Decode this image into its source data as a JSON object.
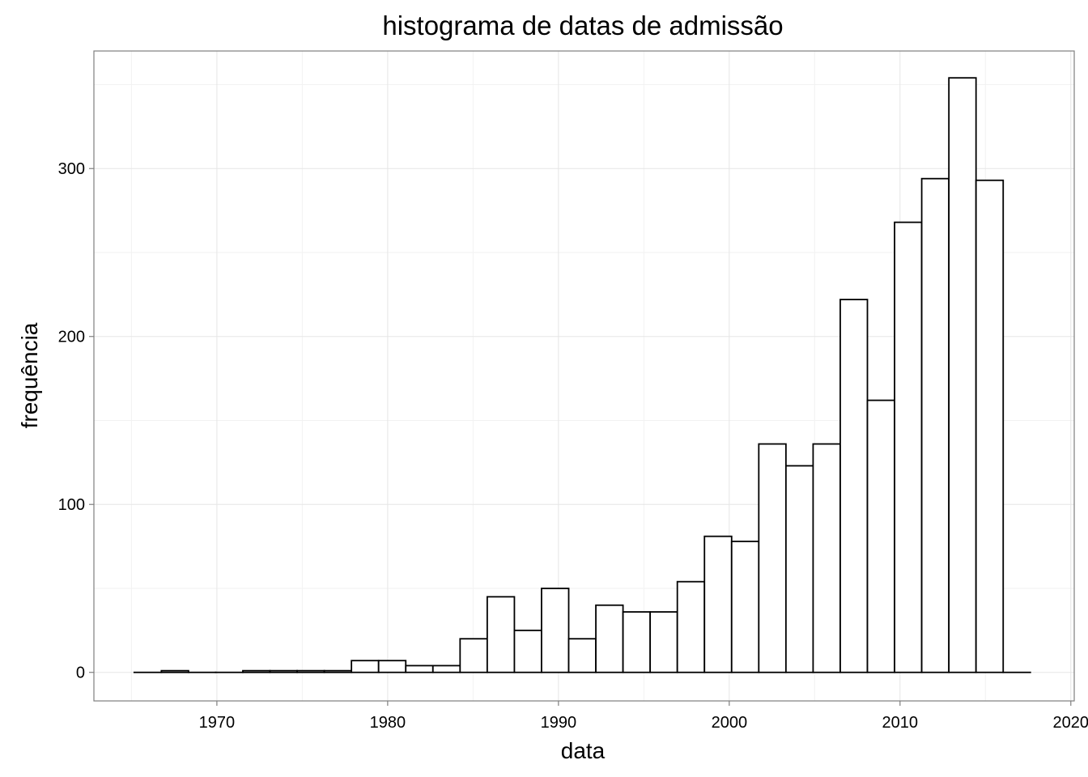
{
  "chart_data": {
    "type": "bar",
    "title": "histograma de datas de admissão",
    "xlabel": "data",
    "ylabel": "frequência",
    "xlim": [
      1962.8,
      2020.2
    ],
    "ylim": [
      -17,
      370
    ],
    "grid": true,
    "x_major_ticks": [
      1970,
      1980,
      1990,
      2000,
      2010,
      2020
    ],
    "x_minor_ticks": [
      1965,
      1975,
      1985,
      1995,
      2005,
      2015
    ],
    "y_major_ticks": [
      0,
      100,
      200,
      300
    ],
    "y_minor_ticks": [
      50,
      150,
      250,
      350
    ],
    "bins": [
      {
        "start": 1965.16,
        "end": 1966.75,
        "count": 0
      },
      {
        "start": 1966.75,
        "end": 1968.34,
        "count": 1
      },
      {
        "start": 1968.34,
        "end": 1969.93,
        "count": 0
      },
      {
        "start": 1969.93,
        "end": 1971.52,
        "count": 0
      },
      {
        "start": 1971.52,
        "end": 1973.11,
        "count": 1
      },
      {
        "start": 1973.11,
        "end": 1974.7,
        "count": 1
      },
      {
        "start": 1974.7,
        "end": 1976.29,
        "count": 1
      },
      {
        "start": 1976.29,
        "end": 1977.88,
        "count": 1
      },
      {
        "start": 1977.88,
        "end": 1979.47,
        "count": 7
      },
      {
        "start": 1979.47,
        "end": 1981.06,
        "count": 7
      },
      {
        "start": 1981.06,
        "end": 1982.65,
        "count": 4
      },
      {
        "start": 1982.65,
        "end": 1984.24,
        "count": 4
      },
      {
        "start": 1984.24,
        "end": 1985.83,
        "count": 20
      },
      {
        "start": 1985.83,
        "end": 1987.42,
        "count": 45
      },
      {
        "start": 1987.42,
        "end": 1989.01,
        "count": 25
      },
      {
        "start": 1989.01,
        "end": 1990.6,
        "count": 50
      },
      {
        "start": 1990.6,
        "end": 1992.19,
        "count": 20
      },
      {
        "start": 1992.19,
        "end": 1993.78,
        "count": 40
      },
      {
        "start": 1993.78,
        "end": 1995.37,
        "count": 36
      },
      {
        "start": 1995.37,
        "end": 1996.96,
        "count": 36
      },
      {
        "start": 1996.96,
        "end": 1998.55,
        "count": 54
      },
      {
        "start": 1998.55,
        "end": 2000.14,
        "count": 81
      },
      {
        "start": 2000.14,
        "end": 2001.73,
        "count": 78
      },
      {
        "start": 2001.73,
        "end": 2003.32,
        "count": 136
      },
      {
        "start": 2003.32,
        "end": 2004.91,
        "count": 123
      },
      {
        "start": 2004.91,
        "end": 2006.5,
        "count": 136
      },
      {
        "start": 2006.5,
        "end": 2008.09,
        "count": 222
      },
      {
        "start": 2008.09,
        "end": 2009.68,
        "count": 162
      },
      {
        "start": 2009.68,
        "end": 2011.27,
        "count": 268
      },
      {
        "start": 2011.27,
        "end": 2012.86,
        "count": 294
      },
      {
        "start": 2012.86,
        "end": 2014.45,
        "count": 354
      },
      {
        "start": 2014.45,
        "end": 2016.04,
        "count": 293
      },
      {
        "start": 2016.04,
        "end": 2017.63,
        "count": 0
      }
    ]
  }
}
